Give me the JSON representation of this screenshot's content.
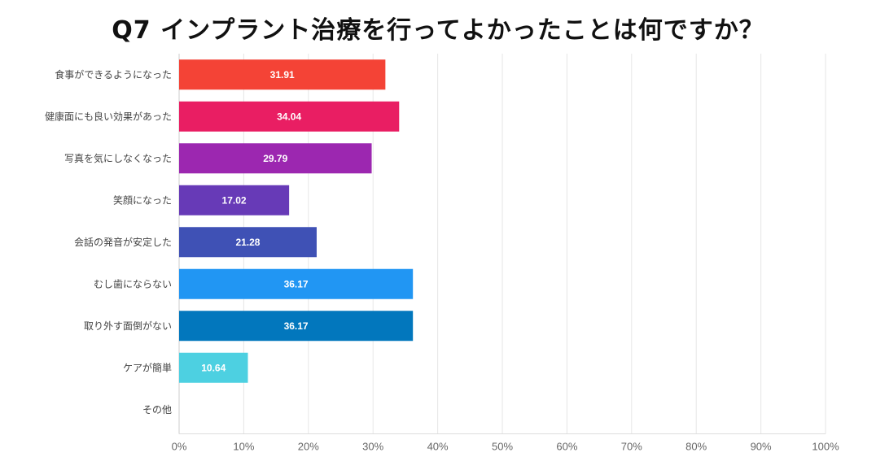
{
  "chart_data": {
    "type": "bar",
    "orientation": "horizontal",
    "title": "Q7 インプラント治療を行ってよかったことは何ですか？",
    "categories": [
      "食事ができるようになった",
      "健康面にも良い効果があった",
      "写真を気にしなくなった",
      "笑顔になった",
      "会話の発音が安定した",
      "むし歯にならない",
      "取り外す面倒がない",
      "ケアが簡単",
      "その他"
    ],
    "values": [
      31.91,
      34.04,
      29.79,
      17.02,
      21.28,
      36.17,
      36.17,
      10.64,
      0
    ],
    "data_labels": [
      "31.91",
      "34.04",
      "29.79",
      "17.02",
      "21.28",
      "36.17",
      "36.17",
      "10.64",
      ""
    ],
    "colors": [
      "#f44336",
      "#e91e63",
      "#9c27b0",
      "#673ab7",
      "#3f51b5",
      "#2196f3",
      "#0277bd",
      "#4dd0e1",
      "#cccccc"
    ],
    "xlim": [
      0,
      100
    ],
    "x_ticks": [
      "0%",
      "10%",
      "20%",
      "30%",
      "40%",
      "50%",
      "60%",
      "70%",
      "80%",
      "90%",
      "100%"
    ],
    "xlabel": "",
    "ylabel": "",
    "grid": true,
    "legend": "none"
  }
}
